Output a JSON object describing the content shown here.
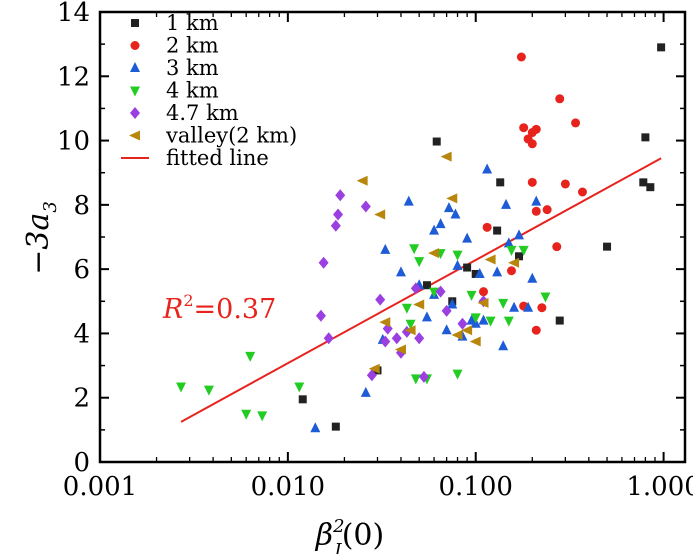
{
  "chart_data": {
    "type": "scatter",
    "xscale": "log",
    "xlim": [
      0.001,
      1.3
    ],
    "ylim": [
      0,
      14
    ],
    "xticks": [
      0.001,
      0.01,
      0.1,
      1
    ],
    "xtick_labels": [
      "0.001",
      "0.010",
      "0.100",
      "1.000"
    ],
    "yticks": [
      0,
      2,
      4,
      6,
      8,
      10,
      12,
      14
    ],
    "ytick_labels": [
      "0",
      "2",
      "4",
      "6",
      "8",
      "10",
      "12",
      "14"
    ],
    "xlabel": {
      "base": "β",
      "sup": "2",
      "sub": "I",
      "tail": "(0)"
    },
    "ylabel": {
      "main": "−3a",
      "sub": "3"
    },
    "legend_position": "top-left",
    "grid": false,
    "annotation": {
      "prefix": "R",
      "sup": "2",
      "suffix": "=0.37",
      "color": "#e8231d"
    },
    "series": [
      {
        "name": "1 km",
        "marker": "square",
        "color": "#222222",
        "points": [
          [
            0.012,
            1.95
          ],
          [
            0.018,
            1.1
          ],
          [
            0.03,
            2.85
          ],
          [
            0.055,
            5.5
          ],
          [
            0.062,
            9.97
          ],
          [
            0.075,
            5.0
          ],
          [
            0.09,
            6.05
          ],
          [
            0.1,
            5.85
          ],
          [
            0.13,
            7.2
          ],
          [
            0.135,
            8.7
          ],
          [
            0.17,
            6.4
          ],
          [
            0.28,
            4.4
          ],
          [
            0.5,
            6.7
          ],
          [
            0.78,
            8.7
          ],
          [
            0.8,
            10.1
          ],
          [
            0.85,
            8.55
          ],
          [
            0.97,
            12.9
          ]
        ]
      },
      {
        "name": "2 km",
        "marker": "circle",
        "color": "#e8231d",
        "points": [
          [
            0.11,
            5.3
          ],
          [
            0.115,
            7.3
          ],
          [
            0.155,
            5.95
          ],
          [
            0.175,
            12.6
          ],
          [
            0.18,
            10.4
          ],
          [
            0.18,
            4.85
          ],
          [
            0.19,
            10.05
          ],
          [
            0.2,
            10.25
          ],
          [
            0.2,
            9.9
          ],
          [
            0.2,
            8.7
          ],
          [
            0.21,
            10.35
          ],
          [
            0.21,
            7.8
          ],
          [
            0.21,
            4.1
          ],
          [
            0.225,
            4.8
          ],
          [
            0.24,
            7.85
          ],
          [
            0.27,
            6.7
          ],
          [
            0.28,
            11.3
          ],
          [
            0.3,
            8.65
          ],
          [
            0.34,
            10.55
          ],
          [
            0.37,
            8.4
          ]
        ]
      },
      {
        "name": "3 km",
        "marker": "triangle-up",
        "color": "#1e5bd6",
        "points": [
          [
            0.014,
            1.05
          ],
          [
            0.026,
            2.15
          ],
          [
            0.032,
            3.8
          ],
          [
            0.033,
            6.6
          ],
          [
            0.04,
            5.9
          ],
          [
            0.044,
            8.1
          ],
          [
            0.05,
            5.5
          ],
          [
            0.055,
            4.5
          ],
          [
            0.06,
            7.2
          ],
          [
            0.065,
            7.4
          ],
          [
            0.07,
            4.1
          ],
          [
            0.072,
            7.9
          ],
          [
            0.078,
            7.7
          ],
          [
            0.08,
            6.1
          ],
          [
            0.085,
            3.9
          ],
          [
            0.09,
            6.95
          ],
          [
            0.095,
            4.4
          ],
          [
            0.1,
            4.3
          ],
          [
            0.105,
            5.85
          ],
          [
            0.11,
            4.4
          ],
          [
            0.115,
            9.1
          ],
          [
            0.13,
            5.9
          ],
          [
            0.14,
            3.6
          ],
          [
            0.145,
            8.0
          ],
          [
            0.15,
            6.8
          ],
          [
            0.16,
            4.8
          ],
          [
            0.17,
            7.05
          ],
          [
            0.19,
            4.8
          ],
          [
            0.2,
            5.7
          ],
          [
            0.21,
            8.1
          ],
          [
            0.06,
            5.2
          ],
          [
            0.075,
            4.9
          ]
        ]
      },
      {
        "name": "4 km",
        "marker": "triangle-down",
        "color": "#23cc23",
        "points": [
          [
            0.0027,
            2.35
          ],
          [
            0.0038,
            2.25
          ],
          [
            0.006,
            1.5
          ],
          [
            0.0063,
            3.3
          ],
          [
            0.0073,
            1.45
          ],
          [
            0.0115,
            2.35
          ],
          [
            0.043,
            4.8
          ],
          [
            0.047,
            6.65
          ],
          [
            0.048,
            2.6
          ],
          [
            0.05,
            6.25
          ],
          [
            0.055,
            2.6
          ],
          [
            0.06,
            5.3
          ],
          [
            0.065,
            6.5
          ],
          [
            0.08,
            2.75
          ],
          [
            0.08,
            6.45
          ],
          [
            0.095,
            5.2
          ],
          [
            0.1,
            4.5
          ],
          [
            0.12,
            4.4
          ],
          [
            0.14,
            4.95
          ],
          [
            0.15,
            4.4
          ],
          [
            0.155,
            6.6
          ],
          [
            0.18,
            6.6
          ],
          [
            0.235,
            5.15
          ],
          [
            0.045,
            4.3
          ]
        ]
      },
      {
        "name": "4.7 km",
        "marker": "diamond",
        "color": "#9b3fe0",
        "points": [
          [
            0.015,
            4.55
          ],
          [
            0.0155,
            6.2
          ],
          [
            0.0165,
            3.85
          ],
          [
            0.018,
            7.35
          ],
          [
            0.0185,
            7.7
          ],
          [
            0.019,
            8.3
          ],
          [
            0.026,
            7.95
          ],
          [
            0.028,
            2.7
          ],
          [
            0.031,
            5.05
          ],
          [
            0.033,
            3.75
          ],
          [
            0.034,
            4.15
          ],
          [
            0.038,
            3.85
          ],
          [
            0.04,
            3.4
          ],
          [
            0.043,
            4.05
          ],
          [
            0.048,
            5.4
          ],
          [
            0.05,
            3.85
          ],
          [
            0.053,
            2.65
          ],
          [
            0.065,
            5.3
          ],
          [
            0.07,
            4.7
          ],
          [
            0.085,
            4.3
          ],
          [
            0.11,
            5.0
          ]
        ]
      },
      {
        "name": "valley(2 km)",
        "marker": "triangle-left",
        "color": "#b8860b",
        "points": [
          [
            0.025,
            8.75
          ],
          [
            0.029,
            2.9
          ],
          [
            0.031,
            7.7
          ],
          [
            0.033,
            4.35
          ],
          [
            0.04,
            3.5
          ],
          [
            0.045,
            4.1
          ],
          [
            0.05,
            4.9
          ],
          [
            0.06,
            6.5
          ],
          [
            0.07,
            9.5
          ],
          [
            0.075,
            8.2
          ],
          [
            0.08,
            3.95
          ],
          [
            0.09,
            4.1
          ],
          [
            0.1,
            3.75
          ],
          [
            0.11,
            4.95
          ],
          [
            0.12,
            6.3
          ],
          [
            0.16,
            6.2
          ]
        ]
      },
      {
        "name": "fitted line",
        "marker": "line",
        "color": "#e8231d",
        "points": [
          [
            0.0027,
            1.25
          ],
          [
            0.97,
            9.45
          ]
        ]
      }
    ]
  }
}
